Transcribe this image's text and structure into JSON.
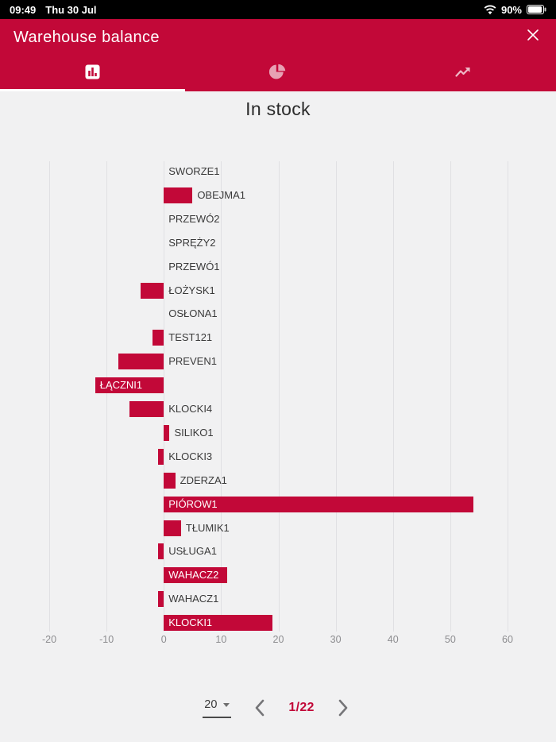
{
  "status_bar": {
    "time": "09:49",
    "date": "Thu 30 Jul",
    "battery": "90%"
  },
  "header": {
    "title": "Warehouse balance"
  },
  "tabs": [
    {
      "id": "bar-chart",
      "active": true
    },
    {
      "id": "pie-chart",
      "active": false
    },
    {
      "id": "line-chart",
      "active": false
    }
  ],
  "page_title": "In stock",
  "chart_data": {
    "type": "bar",
    "orientation": "horizontal",
    "title": "In stock",
    "categories": [
      "SWORZE1",
      "OBEJMA1",
      "PRZEWÓ2",
      "SPRĘŻY2",
      "PRZEWÓ1",
      "ŁOŻYSK1",
      "OSŁONA1",
      "TEST121",
      "PREVEN1",
      "ŁĄCZNI1",
      "KLOCKI4",
      "SILIKO1",
      "KLOCKI3",
      "ZDERZA1",
      "PIÓROW1",
      "TŁUMIK1",
      "USŁUGA1",
      "WAHACZ2",
      "WAHACZ1",
      "KLOCKI1"
    ],
    "values": [
      0,
      5,
      0,
      0,
      0,
      -4,
      0,
      -2,
      -8,
      -12,
      -6,
      1,
      -1,
      2,
      54,
      3,
      -1,
      11,
      -1,
      19
    ],
    "label_inside": [
      false,
      false,
      false,
      false,
      false,
      false,
      false,
      false,
      false,
      true,
      false,
      false,
      false,
      false,
      true,
      false,
      false,
      true,
      false,
      true
    ],
    "xlim": [
      -20,
      60
    ],
    "x_ticks": [
      -20,
      -10,
      0,
      10,
      20,
      30,
      40,
      50,
      60
    ],
    "grid": "vertical",
    "legend": "none",
    "bar_color": "#C20838"
  },
  "pagination": {
    "page_size": "20",
    "page_indicator": "1/22"
  },
  "colors": {
    "accent": "#C20838",
    "status_bar_bg": "#000000",
    "content_bg": "#f1f1f2",
    "grid": "#e0e0e3"
  }
}
